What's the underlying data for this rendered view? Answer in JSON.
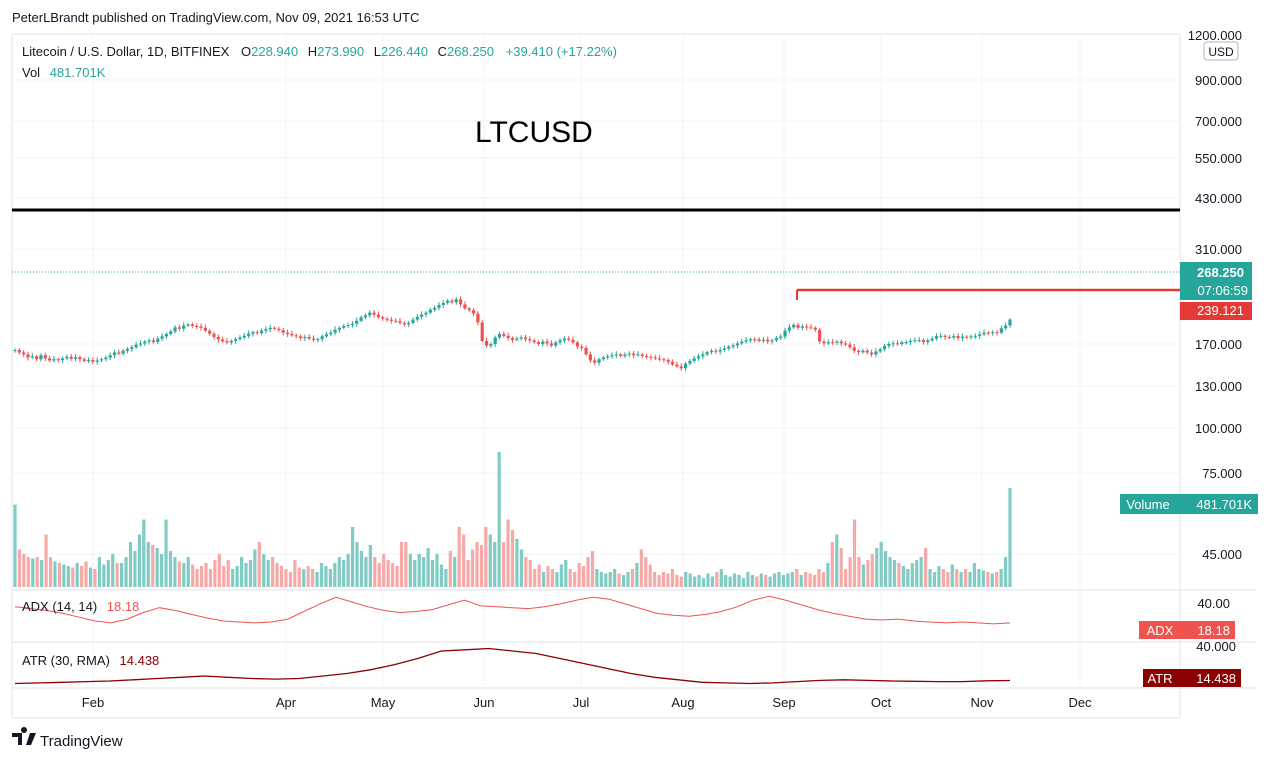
{
  "header": {
    "published_line": "PeterLBrandt published on TradingView.com, Nov 09, 2021 16:53 UTC"
  },
  "legend": {
    "symbol_line": "Litecoin / U.S. Dollar, 1D, BITFINEX",
    "open_label": "O",
    "open": "228.940",
    "high_label": "H",
    "high": "273.990",
    "low_label": "L",
    "low": "226.440",
    "close_label": "C",
    "close": "268.250",
    "change": "+39.410 (+17.22%)",
    "vol_label": "Vol",
    "vol_value": "481.701K"
  },
  "annotation_title": "LTCUSD",
  "price_scale": {
    "currency": "USD",
    "ticks": [
      "1200.000",
      "900.000",
      "700.000",
      "550.000",
      "430.000",
      "310.000",
      "170.000",
      "130.000",
      "100.000",
      "75.000",
      "45.000"
    ],
    "last_price_badge": "268.250",
    "countdown_badge": "07:06:59",
    "line_price_badge": "239.121"
  },
  "volume_badge": {
    "label": "Volume",
    "value": "481.701K"
  },
  "adx": {
    "legend_label": "ADX (14, 14)",
    "legend_value": "18.18",
    "badge_label": "ADX",
    "badge_value": "18.18",
    "scale_tick": "40.00"
  },
  "atr": {
    "legend_label": "ATR (30, RMA)",
    "legend_value": "14.438",
    "badge_label": "ATR",
    "badge_value": "14.438",
    "scale_tick": "40.000"
  },
  "time_axis": [
    "Feb",
    "Apr",
    "May",
    "Jun",
    "Jul",
    "Aug",
    "Sep",
    "Oct",
    "Nov",
    "Dec"
  ],
  "footer": {
    "logo_text": "TradingView"
  },
  "colors": {
    "up": "#26a69a",
    "down": "#ef5350",
    "resistance_line": "#000000",
    "support_line": "#e53935",
    "atr_line": "#8b0000",
    "adx_line": "#ef5350",
    "grid": "#f0f3fa"
  },
  "chart_data": [
    {
      "type": "candlestick",
      "title": "LTCUSD",
      "y_scale": "log",
      "ylim": [
        95,
        1300
      ],
      "x_labels": [
        "Feb",
        "Apr",
        "May",
        "Jun",
        "Jul",
        "Aug",
        "Sep",
        "Oct",
        "Nov",
        "Dec"
      ],
      "closes_daily_approx": [
        152,
        145,
        140,
        132,
        135,
        128,
        138,
        130,
        125,
        128,
        126,
        130,
        134,
        129,
        133,
        128,
        124,
        126,
        122,
        125,
        128,
        132,
        138,
        145,
        142,
        150,
        155,
        160,
        168,
        172,
        178,
        182,
        176,
        188,
        196,
        205,
        215,
        232,
        226,
        240,
        245,
        238,
        236,
        230,
        218,
        206,
        194,
        185,
        179,
        175,
        180,
        186,
        192,
        198,
        206,
        212,
        208,
        218,
        224,
        230,
        226,
        220,
        210,
        205,
        200,
        196,
        190,
        194,
        188,
        184,
        186,
        196,
        204,
        210,
        222,
        230,
        238,
        242,
        248,
        262,
        280,
        290,
        305,
        294,
        280,
        272,
        268,
        262,
        260,
        252,
        246,
        252,
        268,
        282,
        295,
        305,
        322,
        334,
        352,
        366,
        382,
        370,
        392,
        356,
        330,
        320,
        300,
        254,
        180,
        165,
        170,
        192,
        205,
        198,
        190,
        184,
        188,
        192,
        186,
        182,
        176,
        170,
        178,
        172,
        165,
        175,
        182,
        188,
        184,
        175,
        162,
        158,
        140,
        125,
        120,
        128,
        132,
        135,
        138,
        140,
        136,
        140,
        142,
        138,
        140,
        136,
        134,
        132,
        130,
        128,
        126,
        122,
        116,
        112,
        108,
        118,
        124,
        130,
        135,
        140,
        146,
        150,
        148,
        152,
        156,
        162,
        166,
        172,
        178,
        182,
        186,
        185,
        180,
        184,
        178,
        182,
        190,
        195,
        218,
        232,
        243,
        230,
        236,
        232,
        230,
        222,
        178,
        172,
        176,
        174,
        178,
        172,
        168,
        160,
        150,
        146,
        150,
        145,
        140,
        148,
        154,
        164,
        170,
        172,
        170,
        176,
        176,
        180,
        182,
        183,
        176,
        182,
        188,
        197,
        198,
        194,
        192,
        197,
        190,
        195,
        192,
        196,
        198,
        204,
        210,
        208,
        212,
        210,
        228,
        240,
        268
      ],
      "resistance_level": 400,
      "support_level": 239.121,
      "last_close": 268.25
    },
    {
      "type": "bar",
      "title": "Volume",
      "last_value": "481.701K",
      "relative_values_approx": [
        0.55,
        0.25,
        0.22,
        0.2,
        0.19,
        0.2,
        0.18,
        0.35,
        0.2,
        0.17,
        0.16,
        0.15,
        0.14,
        0.13,
        0.16,
        0.14,
        0.17,
        0.13,
        0.12,
        0.2,
        0.15,
        0.18,
        0.22,
        0.16,
        0.16,
        0.2,
        0.3,
        0.24,
        0.35,
        0.45,
        0.3,
        0.28,
        0.26,
        0.22,
        0.45,
        0.24,
        0.2,
        0.17,
        0.16,
        0.2,
        0.15,
        0.12,
        0.14,
        0.16,
        0.12,
        0.18,
        0.22,
        0.14,
        0.18,
        0.12,
        0.14,
        0.2,
        0.16,
        0.18,
        0.25,
        0.3,
        0.22,
        0.18,
        0.2,
        0.16,
        0.14,
        0.12,
        0.1,
        0.18,
        0.13,
        0.12,
        0.14,
        0.12,
        0.1,
        0.16,
        0.14,
        0.12,
        0.16,
        0.2,
        0.18,
        0.22,
        0.4,
        0.3,
        0.24,
        0.2,
        0.28,
        0.2,
        0.16,
        0.22,
        0.18,
        0.16,
        0.14,
        0.3,
        0.3,
        0.22,
        0.18,
        0.22,
        0.2,
        0.26,
        0.18,
        0.22,
        0.15,
        0.12,
        0.24,
        0.2,
        0.4,
        0.35,
        0.18,
        0.25,
        0.3,
        0.28,
        0.4,
        0.35,
        0.3,
        0.9,
        0.3,
        0.45,
        0.38,
        0.32,
        0.25,
        0.2,
        0.18,
        0.12,
        0.15,
        0.1,
        0.14,
        0.12,
        0.1,
        0.15,
        0.18,
        0.12,
        0.1,
        0.16,
        0.14,
        0.2,
        0.24,
        0.12,
        0.1,
        0.09,
        0.1,
        0.12,
        0.09,
        0.08,
        0.1,
        0.12,
        0.16,
        0.25,
        0.2,
        0.15,
        0.1,
        0.08,
        0.1,
        0.09,
        0.12,
        0.08,
        0.07,
        0.1,
        0.09,
        0.07,
        0.08,
        0.06,
        0.09,
        0.07,
        0.1,
        0.12,
        0.08,
        0.07,
        0.09,
        0.08,
        0.06,
        0.1,
        0.08,
        0.07,
        0.09,
        0.08,
        0.07,
        0.09,
        0.1,
        0.08,
        0.09,
        0.1,
        0.12,
        0.08,
        0.1,
        0.09,
        0.08,
        0.12,
        0.1,
        0.16,
        0.3,
        0.35,
        0.26,
        0.12,
        0.2,
        0.45,
        0.2,
        0.15,
        0.18,
        0.22,
        0.26,
        0.3,
        0.24,
        0.2,
        0.18,
        0.16,
        0.14,
        0.12,
        0.16,
        0.18,
        0.2,
        0.26,
        0.12,
        0.1,
        0.14,
        0.12,
        0.1,
        0.15,
        0.12,
        0.1,
        0.12,
        0.1,
        0.16,
        0.12,
        0.11,
        0.1,
        0.09,
        0.1,
        0.12,
        0.2,
        0.66
      ]
    },
    {
      "type": "line",
      "title": "ADX (14, 14)",
      "values_approx": [
        35,
        33,
        31,
        28,
        24,
        20,
        18,
        22,
        29,
        34,
        31,
        27,
        23,
        20,
        19,
        18,
        19,
        22,
        30,
        38,
        45,
        40,
        35,
        31,
        29,
        30,
        32,
        37,
        42,
        36,
        35,
        34,
        33,
        35,
        38,
        42,
        45,
        43,
        38,
        33,
        28,
        26,
        25,
        27,
        30,
        35,
        42,
        46,
        42,
        37,
        32,
        28,
        25,
        22,
        21,
        22,
        20,
        19,
        18,
        19,
        18,
        17,
        18
      ]
    },
    {
      "type": "line",
      "title": "ATR (30, RMA)",
      "values_approx": [
        12,
        12.5,
        13,
        13.5,
        14,
        15,
        16,
        17,
        18,
        17,
        16,
        15.5,
        16,
        18,
        20,
        23,
        27,
        32,
        38,
        39,
        40,
        38,
        36,
        32,
        28,
        24,
        20,
        17,
        15,
        13,
        12.5,
        12,
        12.5,
        13.5,
        14.5,
        15,
        14.5,
        14,
        13.8,
        13.5,
        13.5,
        14.2,
        14.438
      ]
    }
  ]
}
